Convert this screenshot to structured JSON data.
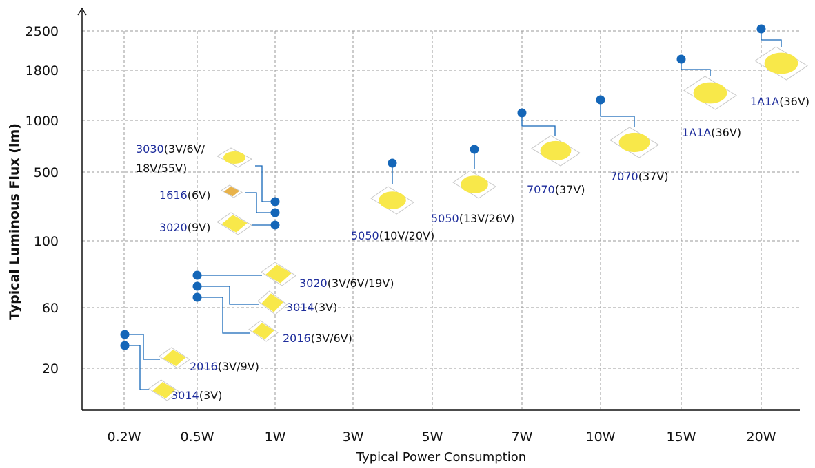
{
  "chart_data": {
    "type": "scatter",
    "xlabel": "Typical Power Consumption",
    "ylabel": "Typical Luminous Flux (lm)",
    "x_categories": [
      "0.2W",
      "0.5W",
      "1W",
      "3W",
      "5W",
      "7W",
      "10W",
      "15W",
      "20W"
    ],
    "y_ticks": [
      "2500",
      "1800",
      "1000",
      "500",
      "100",
      "60",
      "20"
    ],
    "grid": true,
    "colors": {
      "point": "#1466B8",
      "connector": "#1466B8",
      "model": "#1E2D9C",
      "voltage": "#111111",
      "grid": "#9A9A9A",
      "axis": "#111111",
      "led_body": "#FFFFFF",
      "led_emitter": "#F8E84A",
      "led_emitter_1616": "#E8B24A"
    },
    "points": [
      {
        "x": "0.2W",
        "y_tier": "20-60",
        "model": "2016",
        "voltage": "(3V/9V)"
      },
      {
        "x": "0.2W",
        "y_tier": "20-60",
        "model": "3014",
        "voltage": "(3V)"
      },
      {
        "x": "0.5W",
        "y_tier": "60-100",
        "model": "3020",
        "voltage": "(3V/6V/19V)"
      },
      {
        "x": "0.5W",
        "y_tier": "60-100",
        "model": "3014",
        "voltage": "(3V)"
      },
      {
        "x": "0.5W",
        "y_tier": "60-100",
        "model": "2016",
        "voltage": "(3V/6V)"
      },
      {
        "x": "1W",
        "y_tier": "100-500",
        "model": "3030",
        "voltage": "(3V/6V/\n18V/55V)"
      },
      {
        "x": "1W",
        "y_tier": "100-500",
        "model": "1616",
        "voltage": "(6V)"
      },
      {
        "x": "1W",
        "y_tier": "100-500",
        "model": "3020",
        "voltage": "(9V)"
      },
      {
        "x": "3W-5W",
        "y_tier": "100-500",
        "model": "5050",
        "voltage": "(10V/20V)"
      },
      {
        "x": "5W-7W",
        "y_tier": "500-1000",
        "model": "5050",
        "voltage": "(13V/26V)"
      },
      {
        "x": "7W",
        "y_tier": "500-1000",
        "model": "7070",
        "voltage": "(37V)"
      },
      {
        "x": "10W",
        "y_tier": "1000",
        "model": "7070",
        "voltage": "(37V)"
      },
      {
        "x": "15W",
        "y_tier": "1800",
        "model": "1A1A",
        "voltage": "(36V)"
      },
      {
        "x": "20W",
        "y_tier": "2500",
        "model": "1A1A",
        "voltage": "(36V)"
      }
    ]
  }
}
